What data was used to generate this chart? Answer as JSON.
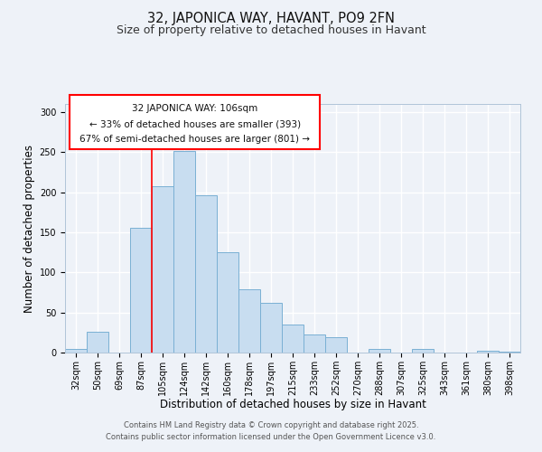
{
  "title": "32, JAPONICA WAY, HAVANT, PO9 2FN",
  "subtitle": "Size of property relative to detached houses in Havant",
  "xlabel": "Distribution of detached houses by size in Havant",
  "ylabel": "Number of detached properties",
  "bar_color": "#c8ddf0",
  "bar_edge_color": "#7ab0d4",
  "bg_color": "#eef2f8",
  "grid_color": "#ffffff",
  "categories": [
    "32sqm",
    "50sqm",
    "69sqm",
    "87sqm",
    "105sqm",
    "124sqm",
    "142sqm",
    "160sqm",
    "178sqm",
    "197sqm",
    "215sqm",
    "233sqm",
    "252sqm",
    "270sqm",
    "288sqm",
    "307sqm",
    "325sqm",
    "343sqm",
    "361sqm",
    "380sqm",
    "398sqm"
  ],
  "values": [
    5,
    26,
    0,
    156,
    207,
    251,
    196,
    125,
    79,
    62,
    35,
    23,
    19,
    0,
    4,
    0,
    4,
    0,
    0,
    2,
    1
  ],
  "ylim": [
    0,
    310
  ],
  "yticks": [
    0,
    50,
    100,
    150,
    200,
    250,
    300
  ],
  "property_line_x": 3.5,
  "annotation_text_line1": "32 JAPONICA WAY: 106sqm",
  "annotation_text_line2": "← 33% of detached houses are smaller (393)",
  "annotation_text_line3": "67% of semi-detached houses are larger (801) →",
  "footer_line1": "Contains HM Land Registry data © Crown copyright and database right 2025.",
  "footer_line2": "Contains public sector information licensed under the Open Government Licence v3.0.",
  "title_fontsize": 10.5,
  "subtitle_fontsize": 9,
  "tick_fontsize": 7,
  "label_fontsize": 8.5,
  "annotation_fontsize": 7.5
}
